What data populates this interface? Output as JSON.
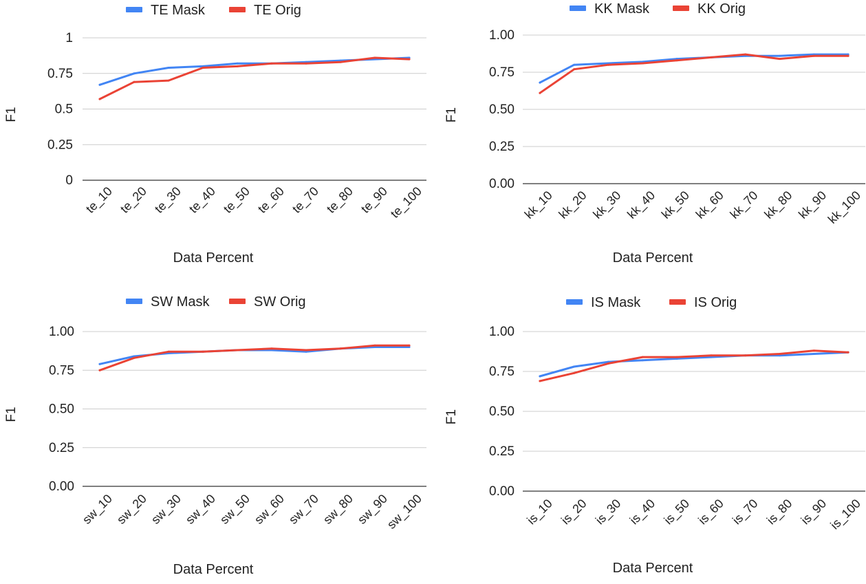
{
  "chart_data": [
    {
      "type": "line",
      "categories": [
        "te_10",
        "te_20",
        "te_30",
        "te_40",
        "te_50",
        "te_60",
        "te_70",
        "te_80",
        "te_90",
        "te_100"
      ],
      "series": [
        {
          "name": "TE Mask",
          "color": "#4285f4",
          "values": [
            0.67,
            0.75,
            0.79,
            0.8,
            0.82,
            0.82,
            0.83,
            0.84,
            0.85,
            0.86
          ]
        },
        {
          "name": "TE Orig",
          "color": "#ea4335",
          "values": [
            0.57,
            0.69,
            0.7,
            0.79,
            0.8,
            0.82,
            0.82,
            0.83,
            0.86,
            0.85
          ]
        }
      ],
      "ylabel": "F1",
      "xlabel": "Data Percent",
      "ylim": [
        0,
        1
      ],
      "yticks": [
        "0",
        "0.25",
        "0.5",
        "0.75",
        "1"
      ],
      "legend": "top"
    },
    {
      "type": "line",
      "categories": [
        "kk_10",
        "kk_20",
        "kk_30",
        "kk_40",
        "kk_50",
        "kk_60",
        "kk_70",
        "kk_80",
        "kk_90",
        "kk_100"
      ],
      "series": [
        {
          "name": "KK Mask",
          "color": "#4285f4",
          "values": [
            0.68,
            0.8,
            0.81,
            0.82,
            0.84,
            0.85,
            0.86,
            0.86,
            0.87,
            0.87
          ]
        },
        {
          "name": "KK Orig",
          "color": "#ea4335",
          "values": [
            0.61,
            0.77,
            0.8,
            0.81,
            0.83,
            0.85,
            0.87,
            0.84,
            0.86,
            0.86
          ]
        }
      ],
      "ylabel": "F1",
      "xlabel": "Data Percent",
      "ylim": [
        0,
        1
      ],
      "yticks": [
        "0.00",
        "0.25",
        "0.50",
        "0.75",
        "1.00"
      ],
      "legend": "top"
    },
    {
      "type": "line",
      "categories": [
        "sw_10",
        "sw_20",
        "sw_30",
        "sw_40",
        "sw_50",
        "sw_60",
        "sw_70",
        "sw_80",
        "sw_90",
        "sw_100"
      ],
      "series": [
        {
          "name": "SW Mask",
          "color": "#4285f4",
          "values": [
            0.79,
            0.84,
            0.86,
            0.87,
            0.88,
            0.88,
            0.87,
            0.89,
            0.9,
            0.9
          ]
        },
        {
          "name": "SW Orig",
          "color": "#ea4335",
          "values": [
            0.75,
            0.83,
            0.87,
            0.87,
            0.88,
            0.89,
            0.88,
            0.89,
            0.91,
            0.91
          ]
        }
      ],
      "ylabel": "F1",
      "xlabel": "Data Percent",
      "ylim": [
        0,
        1
      ],
      "yticks": [
        "0.00",
        "0.25",
        "0.50",
        "0.75",
        "1.00"
      ],
      "legend": "top"
    },
    {
      "type": "line",
      "categories": [
        "is_10",
        "is_20",
        "is_30",
        "is_40",
        "is_50",
        "is_60",
        "is_70",
        "is_80",
        "is_90",
        "is_100"
      ],
      "series": [
        {
          "name": "IS Mask",
          "color": "#4285f4",
          "values": [
            0.72,
            0.78,
            0.81,
            0.82,
            0.83,
            0.84,
            0.85,
            0.85,
            0.86,
            0.87
          ]
        },
        {
          "name": "IS Orig",
          "color": "#ea4335",
          "values": [
            0.69,
            0.74,
            0.8,
            0.84,
            0.84,
            0.85,
            0.85,
            0.86,
            0.88,
            0.87
          ]
        }
      ],
      "ylabel": "F1",
      "xlabel": "Data Percent",
      "ylim": [
        0,
        1
      ],
      "yticks": [
        "0.00",
        "0.25",
        "0.50",
        "0.75",
        "1.00"
      ],
      "legend": "top"
    }
  ]
}
